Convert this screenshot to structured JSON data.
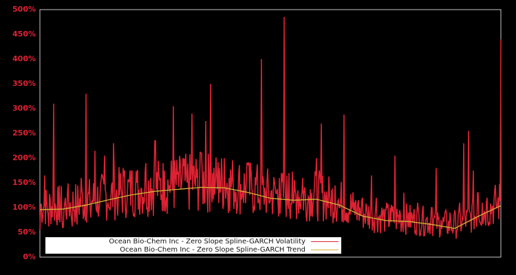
{
  "chart_data": {
    "type": "line",
    "title": "",
    "xlabel": "",
    "ylabel": "",
    "ylim": [
      0,
      500
    ],
    "y_unit": "%",
    "yticks": [
      "0%",
      "50%",
      "100%",
      "150%",
      "200%",
      "250%",
      "300%",
      "350%",
      "400%",
      "450%",
      "500%"
    ],
    "xticks": [],
    "grid": false,
    "background": "#000000",
    "axis_color": "#c8c8c8",
    "tick_label_color": "#dd2233",
    "legend_position": "lower-left",
    "series": [
      {
        "name": "Ocean Bio-Chem Inc - Zero Slope Spline-GARCH Volatility",
        "color": "#dd2233",
        "x": [
          0,
          1,
          2,
          3,
          4,
          5,
          6,
          7,
          8,
          9,
          10,
          11,
          12,
          13,
          14,
          15,
          16,
          17,
          18,
          19,
          20,
          21,
          22,
          23,
          24,
          25,
          26,
          27,
          28,
          29,
          30,
          31,
          32,
          33,
          34,
          35,
          36,
          37,
          38,
          39,
          40,
          41,
          42,
          43,
          44,
          45,
          46,
          47,
          48,
          49,
          50,
          51,
          52,
          53,
          54,
          55,
          56,
          57,
          58,
          59,
          60,
          61,
          62,
          63,
          64,
          65,
          66,
          67,
          68,
          69,
          70,
          71,
          72,
          73,
          74,
          75,
          76,
          77,
          78,
          79,
          80,
          81,
          82,
          83,
          84,
          85,
          86,
          87,
          88,
          89,
          90,
          91,
          92,
          93,
          94,
          95,
          96,
          97,
          98,
          99,
          100
        ],
        "values": [
          55,
          165,
          62,
          310,
          75,
          60,
          130,
          62,
          66,
          160,
          330,
          80,
          215,
          110,
          205,
          100,
          230,
          120,
          180,
          125,
          175,
          150,
          140,
          190,
          160,
          235,
          155,
          175,
          145,
          305,
          170,
          200,
          150,
          290,
          160,
          210,
          275,
          350,
          150,
          180,
          200,
          160,
          145,
          125,
          135,
          190,
          140,
          170,
          400,
          130,
          115,
          140,
          160,
          485,
          170,
          110,
          135,
          160,
          105,
          130,
          200,
          270,
          125,
          110,
          145,
          100,
          288,
          90,
          95,
          110,
          120,
          85,
          165,
          120,
          85,
          95,
          100,
          205,
          95,
          130,
          90,
          85,
          110,
          95,
          80,
          100,
          180,
          75,
          95,
          90,
          95,
          110,
          230,
          255,
          175,
          130,
          110,
          120,
          100,
          105,
          440
        ]
      },
      {
        "name": "Ocean Bio-Chem Inc - Zero Slope Spline-GARCH Trend",
        "color": "#d4af37",
        "x": [
          0,
          5,
          10,
          15,
          20,
          25,
          30,
          35,
          40,
          45,
          50,
          55,
          60,
          65,
          70,
          75,
          80,
          85,
          90,
          95,
          100
        ],
        "values": [
          96,
          97,
          105,
          116,
          126,
          133,
          137,
          141,
          140,
          131,
          119,
          115,
          117,
          105,
          83,
          74,
          72,
          66,
          58,
          82,
          104
        ]
      }
    ]
  },
  "legend": {
    "items": [
      {
        "label": "Ocean Bio-Chem Inc - Zero Slope Spline-GARCH Volatility",
        "color": "#dd2233"
      },
      {
        "label": "Ocean Bio-Chem Inc - Zero Slope Spline-GARCH Trend",
        "color": "#d4af37"
      }
    ]
  }
}
